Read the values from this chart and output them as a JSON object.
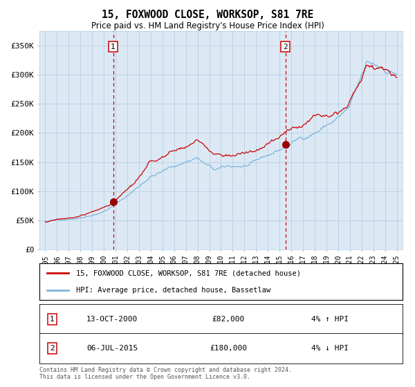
{
  "title": "15, FOXWOOD CLOSE, WORKSOP, S81 7RE",
  "subtitle": "Price paid vs. HM Land Registry's House Price Index (HPI)",
  "bg_color": "#dce9f5",
  "hpi_color": "#7fb3d9",
  "price_color": "#cc0000",
  "marker_color": "#990000",
  "vline_color": "#cc0000",
  "yticks": [
    0,
    50000,
    100000,
    150000,
    200000,
    250000,
    300000,
    350000
  ],
  "ytick_labels": [
    "£0",
    "£50K",
    "£100K",
    "£150K",
    "£200K",
    "£250K",
    "£300K",
    "£350K"
  ],
  "xlim_start": 1994.5,
  "xlim_end": 2025.5,
  "ylim": [
    0,
    375000
  ],
  "sale1_year": 2000.79,
  "sale1_price": 82000,
  "sale1_label": "1",
  "sale1_date": "13-OCT-2000",
  "sale1_hpi_pct": "4% ↑ HPI",
  "sale2_year": 2015.5,
  "sale2_price": 180000,
  "sale2_label": "2",
  "sale2_date": "06-JUL-2015",
  "sale2_hpi_pct": "4% ↓ HPI",
  "legend_line1": "15, FOXWOOD CLOSE, WORKSOP, S81 7RE (detached house)",
  "legend_line2": "HPI: Average price, detached house, Bassetlaw",
  "footer": "Contains HM Land Registry data © Crown copyright and database right 2024.\nThis data is licensed under the Open Government Licence v3.0.",
  "xticks": [
    1995,
    1996,
    1997,
    1998,
    1999,
    2000,
    2001,
    2002,
    2003,
    2004,
    2005,
    2006,
    2007,
    2008,
    2009,
    2010,
    2011,
    2012,
    2013,
    2014,
    2015,
    2016,
    2017,
    2018,
    2019,
    2020,
    2021,
    2022,
    2023,
    2024,
    2025
  ]
}
